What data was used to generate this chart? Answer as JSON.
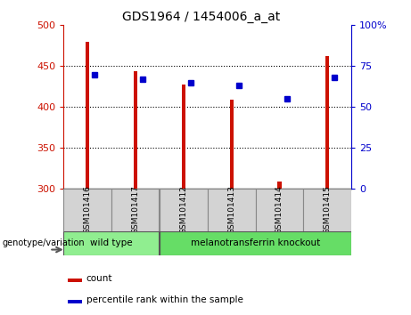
{
  "title": "GDS1964 / 1454006_a_at",
  "samples": [
    "GSM101416",
    "GSM101417",
    "GSM101412",
    "GSM101413",
    "GSM101414",
    "GSM101415"
  ],
  "counts": [
    480,
    444,
    428,
    409,
    309,
    462
  ],
  "percentile_ranks": [
    70,
    67,
    65,
    63,
    55,
    68
  ],
  "groups": [
    {
      "label": "wild type",
      "indices": [
        0,
        1
      ],
      "color": "#90EE90"
    },
    {
      "label": "melanotransferrin knockout",
      "indices": [
        2,
        3,
        4,
        5
      ],
      "color": "#66DD66"
    }
  ],
  "ylim_left": [
    300,
    500
  ],
  "ylim_right": [
    0,
    100
  ],
  "yticks_left": [
    300,
    350,
    400,
    450,
    500
  ],
  "yticks_right": [
    0,
    25,
    50,
    75,
    100
  ],
  "bar_color": "#CC1100",
  "square_color": "#0000CC",
  "bar_width": 0.08,
  "background_color": "#ffffff",
  "legend_items": [
    "count",
    "percentile rank within the sample"
  ],
  "genotype_label": "genotype/variation"
}
